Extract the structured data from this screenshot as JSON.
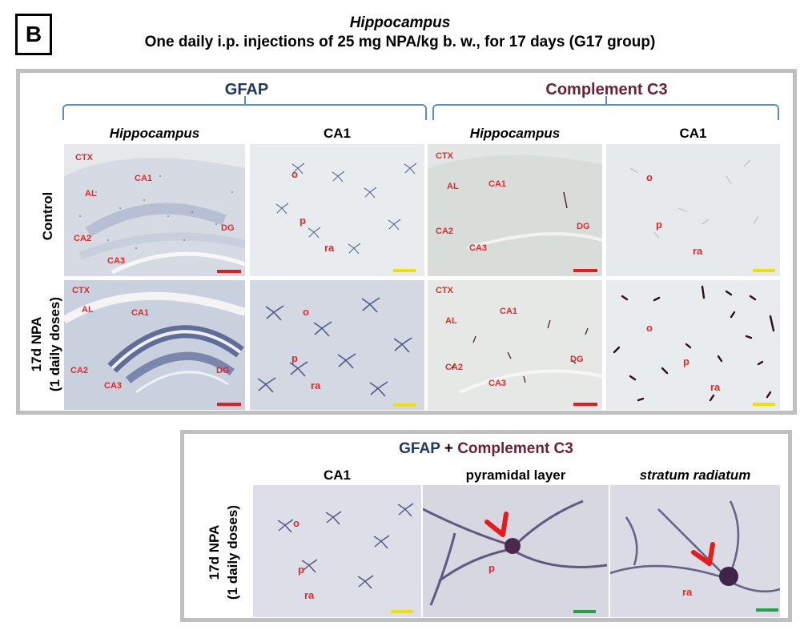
{
  "panel": {
    "letter": "B",
    "title_italic": "Hippocampus",
    "title": "One daily i.p. injections of 25 mg NPA/kg b. w., for 17 days  (G17 group)"
  },
  "top": {
    "groups": [
      {
        "label": "GFAP",
        "color": "#1f3864"
      },
      {
        "label": "Complement C3",
        "color": "#6b2234"
      }
    ],
    "col_heads": [
      "Hippocampus",
      "CA1",
      "Hippocampus",
      "CA1"
    ],
    "rows": [
      "Control",
      "17d NPA",
      "(1 daily doses)"
    ]
  },
  "regions": {
    "ctx": "CTX",
    "al": "AL",
    "ca1": "CA1",
    "ca2": "CA2",
    "ca3": "CA3",
    "dg": "DG",
    "o": "o",
    "p": "p",
    "ra": "ra"
  },
  "bottom": {
    "title_gfap": "GFAP",
    "title_plus": "+",
    "title_c3": "Complement C3",
    "gfap_color": "#1f3864",
    "c3_color": "#6b2234",
    "col_heads": [
      "CA1",
      "pyramidal layer",
      "stratum radiatum"
    ],
    "row_line1": "17d NPA",
    "row_line2": "(1 daily doses)"
  },
  "scalebar_colors": {
    "red": "#e41c1c",
    "yellow": "#f2e100",
    "green": "#1fa24a"
  }
}
